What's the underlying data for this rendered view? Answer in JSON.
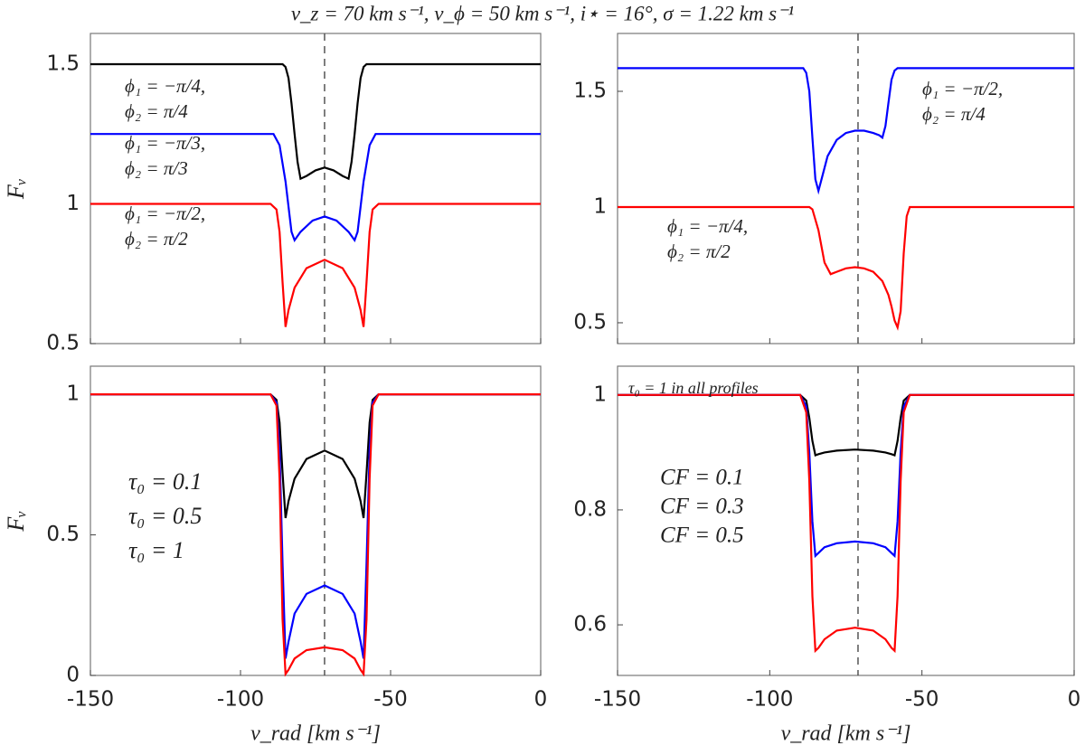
{
  "title": "v_z = 70 km s⁻¹, v_ϕ = 50 km s⁻¹, i⋆ = 16°, σ = 1.22 km s⁻¹",
  "chart_data": [
    {
      "type": "line",
      "ylabel": "Fᵥ",
      "xlim": [
        -150,
        0
      ],
      "ylim": [
        0.5,
        1.61
      ],
      "xticks": [
        -150,
        -100,
        -50,
        0
      ],
      "yticks": [
        0.5,
        1,
        1.5
      ],
      "vline": -72,
      "series": [
        {
          "label": [
            "ϕ₁ = −π/4,",
            "ϕ₂ = π/4"
          ],
          "color": "#000000",
          "x": [
            -150,
            -86,
            -85,
            -84,
            -83,
            -82,
            -81,
            -80,
            -78,
            -75,
            -72,
            -69,
            -66,
            -64,
            -63,
            -62,
            -61,
            -60,
            -59,
            -58,
            0
          ],
          "values": [
            1.5,
            1.5,
            1.49,
            1.45,
            1.36,
            1.25,
            1.15,
            1.09,
            1.1,
            1.12,
            1.13,
            1.12,
            1.1,
            1.09,
            1.15,
            1.25,
            1.36,
            1.45,
            1.49,
            1.5,
            1.5
          ]
        },
        {
          "label": [
            "ϕ₁ = −π/3,",
            "ϕ₂ = π/3"
          ],
          "color": "#0000ff",
          "x": [
            -150,
            -89,
            -87,
            -85,
            -83,
            -82,
            -80,
            -76,
            -72,
            -68,
            -64,
            -62,
            -61,
            -59,
            -57,
            -55,
            0
          ],
          "values": [
            1.25,
            1.25,
            1.21,
            1.08,
            0.9,
            0.87,
            0.9,
            0.94,
            0.955,
            0.94,
            0.9,
            0.87,
            0.9,
            1.08,
            1.21,
            1.25,
            1.25
          ]
        },
        {
          "label": [
            "ϕ₁ = −π/2,",
            "ϕ₂ = π/2"
          ],
          "color": "#ff0000",
          "x": [
            -150,
            -90,
            -88,
            -87,
            -86,
            -85,
            -84,
            -82,
            -78,
            -72,
            -66,
            -62,
            -60,
            -59,
            -58,
            -57,
            -56,
            -54,
            0
          ],
          "values": [
            1,
            1,
            0.98,
            0.9,
            0.72,
            0.56,
            0.62,
            0.7,
            0.77,
            0.8,
            0.77,
            0.7,
            0.62,
            0.56,
            0.72,
            0.9,
            0.98,
            1,
            1
          ]
        }
      ]
    },
    {
      "type": "line",
      "xlim": [
        -150,
        0
      ],
      "ylim": [
        0.41,
        1.75
      ],
      "xticks": [
        -150,
        -100,
        -50,
        0
      ],
      "yticks": [
        0.5,
        1,
        1.5
      ],
      "vline": -71,
      "series": [
        {
          "label": [
            "ϕ₁ = −π/2,",
            "ϕ₂ = π/4"
          ],
          "color": "#0000ff",
          "x": [
            -150,
            -89,
            -88,
            -87,
            -86,
            -85,
            -84,
            -83,
            -81,
            -78,
            -75,
            -72,
            -69,
            -66,
            -64,
            -63,
            -62,
            -61,
            -60,
            -59,
            -58,
            0
          ],
          "values": [
            1.6,
            1.6,
            1.58,
            1.5,
            1.3,
            1.12,
            1.07,
            1.12,
            1.22,
            1.29,
            1.32,
            1.33,
            1.33,
            1.32,
            1.31,
            1.3,
            1.35,
            1.45,
            1.55,
            1.59,
            1.6,
            1.6
          ]
        },
        {
          "label": [
            "ϕ₁ = −π/4,",
            "ϕ₂ = π/2"
          ],
          "color": "#ff0000",
          "x": [
            -150,
            -87,
            -86,
            -84,
            -82,
            -80,
            -78,
            -75,
            -72,
            -69,
            -66,
            -63,
            -61,
            -60,
            -59,
            -58,
            -57,
            -56,
            -55,
            -54,
            0
          ],
          "values": [
            1,
            1,
            0.99,
            0.9,
            0.76,
            0.71,
            0.72,
            0.735,
            0.74,
            0.735,
            0.72,
            0.68,
            0.62,
            0.57,
            0.51,
            0.48,
            0.55,
            0.8,
            0.96,
            1,
            1
          ]
        }
      ]
    },
    {
      "type": "line",
      "ylabel": "Fᵥ",
      "xlabel": "v_rad [km s⁻¹]",
      "xlim": [
        -150,
        0
      ],
      "ylim": [
        0,
        1.1
      ],
      "xticks": [
        -150,
        -100,
        -50,
        0
      ],
      "yticks": [
        0,
        0.5,
        1
      ],
      "vline": -72,
      "series": [
        {
          "name": "τ₀ = 0.1",
          "color": "#000000",
          "x": [
            -150,
            -90,
            -88,
            -87,
            -86,
            -85,
            -84,
            -82,
            -78,
            -72,
            -66,
            -62,
            -60,
            -59,
            -58,
            -57,
            -56,
            -54,
            0
          ],
          "values": [
            1,
            1,
            0.98,
            0.9,
            0.72,
            0.56,
            0.62,
            0.7,
            0.77,
            0.8,
            0.77,
            0.7,
            0.62,
            0.56,
            0.72,
            0.9,
            0.98,
            1,
            1
          ]
        },
        {
          "name": "τ₀ = 0.5",
          "color": "#0000ff",
          "x": [
            -150,
            -90,
            -88,
            -87,
            -86,
            -85,
            -84,
            -82,
            -78,
            -72,
            -66,
            -62,
            -60,
            -59,
            -58,
            -57,
            -56,
            -54,
            0
          ],
          "values": [
            1,
            1,
            0.97,
            0.8,
            0.4,
            0.06,
            0.12,
            0.22,
            0.29,
            0.32,
            0.29,
            0.22,
            0.12,
            0.06,
            0.4,
            0.8,
            0.97,
            1,
            1
          ]
        },
        {
          "name": "τ₀ = 1",
          "color": "#ff0000",
          "x": [
            -150,
            -90,
            -88,
            -87,
            -86,
            -85,
            -84,
            -82,
            -78,
            -72,
            -66,
            -62,
            -60,
            -59,
            -58,
            -57,
            -56,
            -54,
            0
          ],
          "values": [
            1,
            1,
            0.96,
            0.7,
            0.2,
            0.005,
            0.02,
            0.06,
            0.09,
            0.1,
            0.09,
            0.06,
            0.02,
            0.005,
            0.2,
            0.7,
            0.96,
            1,
            1
          ]
        }
      ]
    },
    {
      "type": "line",
      "xlabel": "v_rad [km s⁻¹]",
      "annotation": "τ₀ = 1 in all profiles",
      "xlim": [
        -150,
        0
      ],
      "ylim": [
        0.512,
        1.05
      ],
      "xticks": [
        -150,
        -100,
        -50,
        0
      ],
      "yticks": [
        0.6,
        0.8,
        1
      ],
      "vline": -71,
      "series": [
        {
          "name": "CF = 0.1",
          "color": "#000000",
          "x": [
            -150,
            -90,
            -88,
            -87,
            -86,
            -85,
            -84,
            -82,
            -78,
            -72,
            -66,
            -62,
            -60,
            -59,
            -58,
            -57,
            -56,
            -54,
            0
          ],
          "values": [
            1,
            1,
            0.99,
            0.96,
            0.92,
            0.895,
            0.897,
            0.9,
            0.903,
            0.905,
            0.903,
            0.9,
            0.897,
            0.895,
            0.92,
            0.96,
            0.99,
            1,
            1
          ]
        },
        {
          "name": "CF = 0.3",
          "color": "#0000ff",
          "x": [
            -150,
            -90,
            -88,
            -87,
            -86,
            -85,
            -84,
            -82,
            -78,
            -72,
            -66,
            -62,
            -60,
            -59,
            -58,
            -57,
            -56,
            -54,
            0
          ],
          "values": [
            1,
            1,
            0.98,
            0.9,
            0.78,
            0.72,
            0.725,
            0.735,
            0.742,
            0.745,
            0.742,
            0.735,
            0.725,
            0.72,
            0.78,
            0.9,
            0.98,
            1,
            1
          ]
        },
        {
          "name": "CF = 0.5",
          "color": "#ff0000",
          "x": [
            -150,
            -90,
            -88,
            -87,
            -86,
            -85,
            -84,
            -82,
            -78,
            -72,
            -66,
            -62,
            -60,
            -59,
            -58,
            -57,
            -56,
            -54,
            0
          ],
          "values": [
            1,
            1,
            0.97,
            0.85,
            0.65,
            0.555,
            0.56,
            0.575,
            0.59,
            0.595,
            0.59,
            0.575,
            0.56,
            0.555,
            0.65,
            0.85,
            0.97,
            1,
            1
          ]
        }
      ]
    }
  ]
}
